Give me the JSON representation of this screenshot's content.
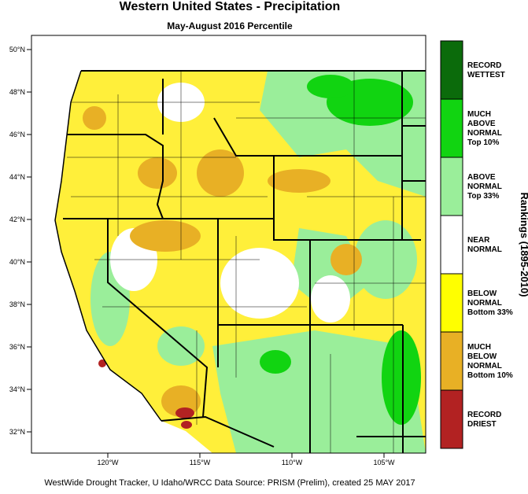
{
  "title": "Western United States - Precipitation",
  "subtitle": "May-August 2016 Percentile",
  "latitude_labels": [
    "50°N",
    "48°N",
    "46°N",
    "44°N",
    "42°N",
    "40°N",
    "38°N",
    "36°N",
    "34°N",
    "32°N"
  ],
  "longitude_labels": [
    "120°W",
    "115°W",
    "110°W",
    "105°W"
  ],
  "legend": {
    "title": "Rankings (1895-2010)",
    "items": [
      {
        "label": [
          "RECORD",
          "WETTEST"
        ],
        "color": "#0b6b0b"
      },
      {
        "label": [
          "MUCH",
          "ABOVE",
          "NORMAL",
          "Top 10%"
        ],
        "color": "#11d411"
      },
      {
        "label": [
          "ABOVE",
          "NORMAL",
          "Top 33%"
        ],
        "color": "#9aee9a"
      },
      {
        "label": [
          "NEAR",
          "NORMAL"
        ],
        "color": "#ffffff"
      },
      {
        "label": [
          "BELOW",
          "NORMAL",
          "Bottom 33%"
        ],
        "color": "#ffff00"
      },
      {
        "label": [
          "MUCH",
          "BELOW",
          "NORMAL",
          "Bottom 10%"
        ],
        "color": "#e8b025"
      },
      {
        "label": [
          "RECORD",
          "DRIEST"
        ],
        "color": "#b22222"
      }
    ]
  },
  "footer": "WestWide Drought Tracker, U Idaho/WRCC Data Source: PRISM (Prelim), created 25 MAY 2017"
}
